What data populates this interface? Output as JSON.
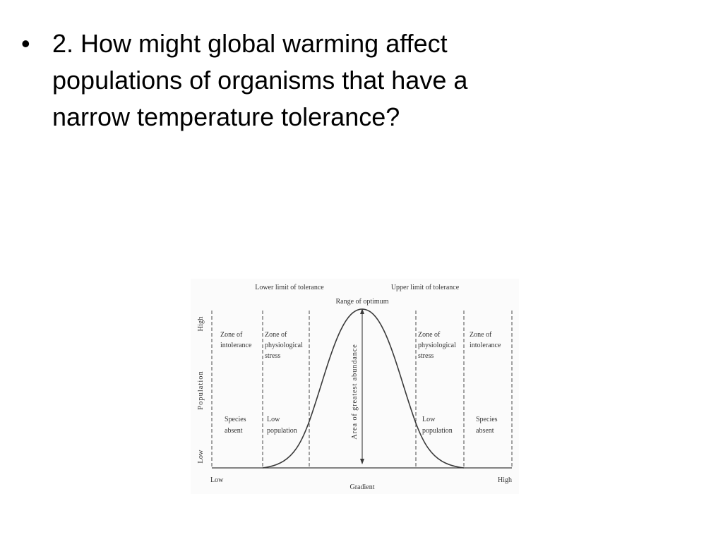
{
  "slide": {
    "bullet": "•",
    "question_lines": [
      "2.  How might global warming affect",
      "populations of organisms that have a",
      "narrow temperature tolerance?"
    ]
  },
  "diagram": {
    "top_labels": {
      "lower_limit": "Lower limit of tolerance",
      "upper_limit": "Upper limit of tolerance",
      "optimum": "Range of optimum"
    },
    "y_axis": {
      "label": "Population",
      "high": "High",
      "low": "Low"
    },
    "x_axis": {
      "label": "Gradient",
      "low": "Low",
      "high": "High"
    },
    "center_label": "Area of greatest abundance",
    "zones": {
      "left_intolerance": [
        "Zone of",
        "intolerance"
      ],
      "left_stress": [
        "Zone of",
        "physiological",
        "stress"
      ],
      "right_stress": [
        "Zone of",
        "physiological",
        "stress"
      ],
      "right_intolerance": [
        "Zone of",
        "intolerance"
      ]
    },
    "bottom_notes": {
      "left_absent": [
        "Species",
        "absent"
      ],
      "left_low": [
        "Low",
        "population"
      ],
      "right_low": [
        "Low",
        "population"
      ],
      "right_absent": [
        "Species",
        "absent"
      ]
    },
    "line_color": "#3a3a3a"
  }
}
